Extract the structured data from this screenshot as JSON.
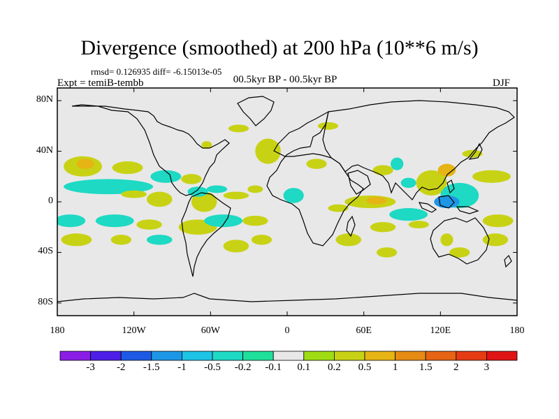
{
  "title": "Divergence (smoothed) at 200 hPa (10**6 m/s)",
  "stats": "rmsd= 0.126935 diff= -6.15013e-05",
  "experiment": "Expt = temiB-tembb",
  "period": "00.5kyr BP - 00.5kyr BP",
  "season": "DJF",
  "axes": {
    "lat_labels": [
      "80N",
      "40N",
      "0",
      "40S",
      "80S"
    ],
    "lat_values": [
      80,
      40,
      0,
      -40,
      -80
    ],
    "lon_labels": [
      "180",
      "120W",
      "60W",
      "0",
      "60E",
      "120E",
      "180"
    ],
    "lon_values": [
      -180,
      -120,
      -60,
      0,
      60,
      120,
      180
    ]
  },
  "colorbar": {
    "levels": [
      "-3",
      "-2",
      "-1.5",
      "-1",
      "-0.5",
      "-0.2",
      "-0.1",
      "0.1",
      "0.2",
      "0.5",
      "1",
      "1.5",
      "2",
      "3"
    ],
    "colors": [
      "#8a1ee6",
      "#4d1ee8",
      "#1e5ae6",
      "#1e96e6",
      "#1ec4e6",
      "#1ed9c4",
      "#1ee09a",
      "#e8e8e8",
      "#a0dc14",
      "#c8d214",
      "#e6b414",
      "#e68c14",
      "#e66414",
      "#e63c14",
      "#e01414"
    ]
  },
  "chart_data": {
    "type": "heatmap",
    "title": "Divergence (smoothed) at 200 hPa (10**6 m/s)",
    "field_units": "10**6 m/s",
    "xlim": [
      -180,
      180
    ],
    "ylim": [
      -90,
      90
    ],
    "blobs": [
      {
        "lon": -160,
        "lat": 28,
        "rlon": 15,
        "rlat": 8,
        "value": 0.4
      },
      {
        "lon": -158,
        "lat": 30,
        "rlon": 7,
        "rlat": 4,
        "value": 0.8
      },
      {
        "lon": -125,
        "lat": 27,
        "rlon": 12,
        "rlat": 5,
        "value": 0.3
      },
      {
        "lon": -140,
        "lat": 12,
        "rlon": 35,
        "rlat": 6,
        "value": -0.35
      },
      {
        "lon": -120,
        "lat": 6,
        "rlon": 10,
        "rlat": 3,
        "value": 0.3
      },
      {
        "lon": -95,
        "lat": 20,
        "rlon": 12,
        "rlat": 5,
        "value": -0.3
      },
      {
        "lon": -100,
        "lat": 2,
        "rlon": 10,
        "rlat": 6,
        "value": 0.2
      },
      {
        "lon": -75,
        "lat": 18,
        "rlon": 8,
        "rlat": 4,
        "value": 0.4
      },
      {
        "lon": -65,
        "lat": 0,
        "rlon": 10,
        "rlat": 8,
        "value": 0.3
      },
      {
        "lon": -70,
        "lat": 8,
        "rlon": 8,
        "rlat": 4,
        "value": -0.3
      },
      {
        "lon": -55,
        "lat": 10,
        "rlon": 8,
        "rlat": 3,
        "value": -0.3
      },
      {
        "lon": -40,
        "lat": 5,
        "rlon": 10,
        "rlat": 3,
        "value": 0.3
      },
      {
        "lon": -63,
        "lat": 45,
        "rlon": 4,
        "rlat": 3,
        "value": 0.3
      },
      {
        "lon": -38,
        "lat": 58,
        "rlon": 8,
        "rlat": 3,
        "value": 0.2
      },
      {
        "lon": -15,
        "lat": 40,
        "rlon": 10,
        "rlat": 10,
        "value": 0.3
      },
      {
        "lon": 32,
        "lat": 60,
        "rlon": 8,
        "rlat": 3,
        "value": 0.2
      },
      {
        "lon": 23,
        "lat": 30,
        "rlon": 8,
        "rlat": 4,
        "value": 0.3
      },
      {
        "lon": 5,
        "lat": 5,
        "rlon": 8,
        "rlat": 6,
        "value": -0.3
      },
      {
        "lon": -25,
        "lat": 10,
        "rlon": 6,
        "rlat": 3,
        "value": 0.2
      },
      {
        "lon": 40,
        "lat": -5,
        "rlon": 8,
        "rlat": 3,
        "value": 0.2
      },
      {
        "lon": 48,
        "lat": -30,
        "rlon": 10,
        "rlat": 5,
        "value": 0.3
      },
      {
        "lon": 65,
        "lat": 0,
        "rlon": 20,
        "rlat": 5,
        "value": 0.3
      },
      {
        "lon": 70,
        "lat": 1,
        "rlon": 8,
        "rlat": 3,
        "value": 0.8
      },
      {
        "lon": 75,
        "lat": 25,
        "rlon": 8,
        "rlat": 4,
        "value": 0.3
      },
      {
        "lon": 86,
        "lat": 30,
        "rlon": 5,
        "rlat": 5,
        "value": -0.3
      },
      {
        "lon": 95,
        "lat": 15,
        "rlon": 6,
        "rlat": 4,
        "value": -0.3
      },
      {
        "lon": 113,
        "lat": 15,
        "rlon": 12,
        "rlat": 10,
        "value": 0.4
      },
      {
        "lon": 125,
        "lat": 25,
        "rlon": 7,
        "rlat": 5,
        "value": 0.8
      },
      {
        "lon": 135,
        "lat": 5,
        "rlon": 15,
        "rlat": 10,
        "value": -0.4
      },
      {
        "lon": 125,
        "lat": 0,
        "rlon": 10,
        "rlat": 5,
        "value": -1.2
      },
      {
        "lon": 160,
        "lat": 20,
        "rlon": 15,
        "rlat": 5,
        "value": 0.3
      },
      {
        "lon": 145,
        "lat": 38,
        "rlon": 8,
        "rlat": 3,
        "value": 0.3
      },
      {
        "lon": 165,
        "lat": -15,
        "rlon": 12,
        "rlat": 5,
        "value": 0.3
      },
      {
        "lon": 163,
        "lat": -30,
        "rlon": 10,
        "rlat": 5,
        "value": 0.3
      },
      {
        "lon": 125,
        "lat": -30,
        "rlon": 5,
        "rlat": 5,
        "value": 0.3
      },
      {
        "lon": 135,
        "lat": -40,
        "rlon": 8,
        "rlat": 4,
        "value": 0.4
      },
      {
        "lon": -170,
        "lat": -15,
        "rlon": 12,
        "rlat": 5,
        "value": -0.3
      },
      {
        "lon": -165,
        "lat": -30,
        "rlon": 12,
        "rlat": 5,
        "value": 0.3
      },
      {
        "lon": -135,
        "lat": -15,
        "rlon": 15,
        "rlat": 5,
        "value": -0.3
      },
      {
        "lon": -130,
        "lat": -30,
        "rlon": 8,
        "rlat": 4,
        "value": 0.3
      },
      {
        "lon": -108,
        "lat": -18,
        "rlon": 10,
        "rlat": 4,
        "value": 0.3
      },
      {
        "lon": -100,
        "lat": -30,
        "rlon": 10,
        "rlat": 4,
        "value": -0.3
      },
      {
        "lon": -70,
        "lat": -20,
        "rlon": 15,
        "rlat": 6,
        "value": 0.3
      },
      {
        "lon": -50,
        "lat": -15,
        "rlon": 15,
        "rlat": 5,
        "value": -0.3
      },
      {
        "lon": -25,
        "lat": -15,
        "rlon": 10,
        "rlat": 4,
        "value": 0.3
      },
      {
        "lon": -40,
        "lat": -35,
        "rlon": 10,
        "rlat": 5,
        "value": 0.4
      },
      {
        "lon": -20,
        "lat": -30,
        "rlon": 8,
        "rlat": 4,
        "value": 0.3
      },
      {
        "lon": 75,
        "lat": -20,
        "rlon": 10,
        "rlat": 4,
        "value": 0.3
      },
      {
        "lon": 95,
        "lat": -10,
        "rlon": 15,
        "rlat": 5,
        "value": -0.3
      },
      {
        "lon": 103,
        "lat": -18,
        "rlon": 8,
        "rlat": 3,
        "value": 0.3
      },
      {
        "lon": 78,
        "lat": -40,
        "rlon": 8,
        "rlat": 4,
        "value": 0.3
      }
    ]
  }
}
